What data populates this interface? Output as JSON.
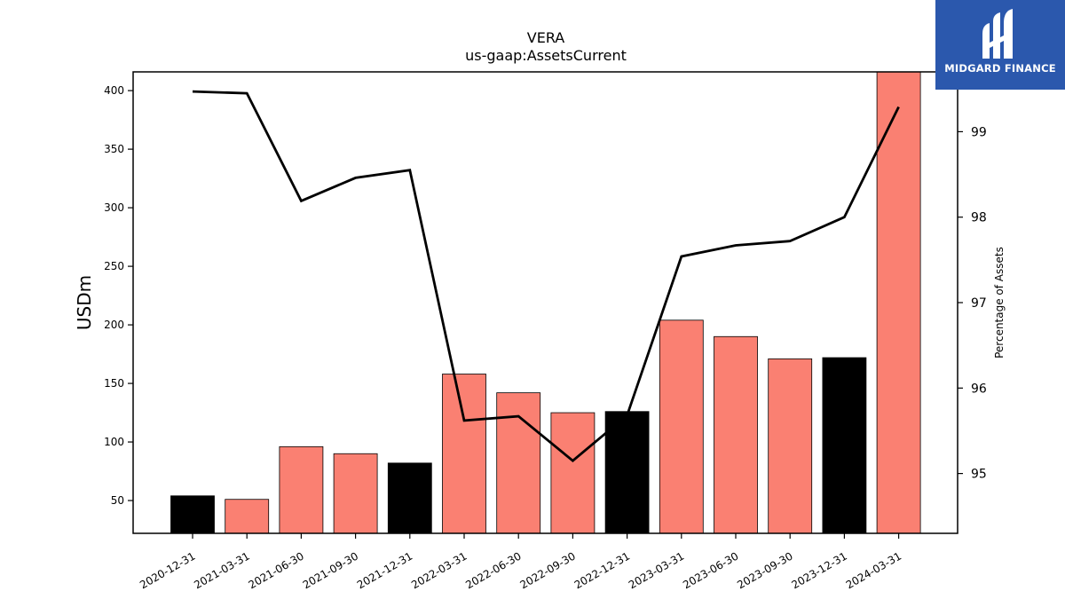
{
  "chart_data": {
    "type": "bar",
    "title": "VERA",
    "subtitle": "us-gaap:AssetsCurrent",
    "ylabel": "USDm",
    "y2label": "Percentage of Assets",
    "ylim": [
      22,
      416
    ],
    "y2lim": [
      94.3,
      99.7
    ],
    "yticks": [
      50,
      100,
      150,
      200,
      250,
      300,
      350,
      400
    ],
    "y2ticks": [
      95,
      96,
      97,
      98,
      99
    ],
    "categories": [
      "2020-12-31",
      "2021-03-31",
      "2021-06-30",
      "2021-09-30",
      "2021-12-31",
      "2022-03-31",
      "2022-06-30",
      "2022-09-30",
      "2022-12-31",
      "2023-03-31",
      "2023-06-30",
      "2023-09-30",
      "2023-12-31",
      "2024-03-31"
    ],
    "series": [
      {
        "kind": "bar",
        "values": [
          54,
          51,
          96,
          90,
          82,
          158,
          142,
          125,
          126,
          204,
          190,
          171,
          172,
          416
        ],
        "colors": [
          "#000000",
          "#fa8072",
          "#fa8072",
          "#fa8072",
          "#000000",
          "#fa8072",
          "#fa8072",
          "#fa8072",
          "#000000",
          "#fa8072",
          "#fa8072",
          "#fa8072",
          "#000000",
          "#fa8072"
        ]
      },
      {
        "kind": "line",
        "axis": "right",
        "color": "#000000",
        "values": [
          99.47,
          99.45,
          98.19,
          98.46,
          98.55,
          95.62,
          95.67,
          95.15,
          95.68,
          97.54,
          97.67,
          97.72,
          98.0,
          99.29
        ]
      }
    ],
    "grid": false,
    "legend": "none"
  },
  "logo": {
    "text": "MIDGARD FINANCE",
    "background": "#2b58ad"
  }
}
